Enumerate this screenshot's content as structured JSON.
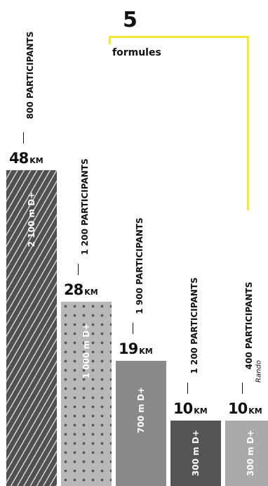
{
  "header": {
    "count": "5",
    "label": "formules"
  },
  "colors": {
    "accent_line": "#f2e830"
  },
  "chart_data": {
    "type": "bar",
    "title": "",
    "xlabel": "",
    "ylabel": "",
    "ylim": [
      0,
      50
    ],
    "grid": false,
    "legend": "none",
    "categories": [
      "48 KM",
      "28 KM",
      "19 KM",
      "10 KM",
      "10 KM"
    ],
    "values": [
      48,
      28,
      19,
      10,
      10
    ],
    "value_unit": "KM",
    "bars": [
      {
        "distance": "48",
        "unit": "KM",
        "elevation": "2 100 m D+",
        "participants": "800 PARTICIPANTS",
        "note": "",
        "color": "#505050",
        "pattern": "stripes"
      },
      {
        "distance": "28",
        "unit": "KM",
        "elevation": "1 000 m D+",
        "participants": "1 200 PARTICIPANTS",
        "note": "",
        "color": "#b8b8b8",
        "pattern": "dots"
      },
      {
        "distance": "19",
        "unit": "KM",
        "elevation": "700 m D+",
        "participants": "1 900 PARTICIPANTS",
        "note": "",
        "color": "#8a8a8a",
        "pattern": "none"
      },
      {
        "distance": "10",
        "unit": "KM",
        "elevation": "300 m D+",
        "participants": "1 200 PARTICIPANTS",
        "note": "",
        "color": "#555555",
        "pattern": "none"
      },
      {
        "distance": "10",
        "unit": "KM",
        "elevation": "300 m D+",
        "participants": "400 PARTICIPANTS",
        "note": "Rando",
        "color": "#aaaaaa",
        "pattern": "none"
      }
    ]
  }
}
